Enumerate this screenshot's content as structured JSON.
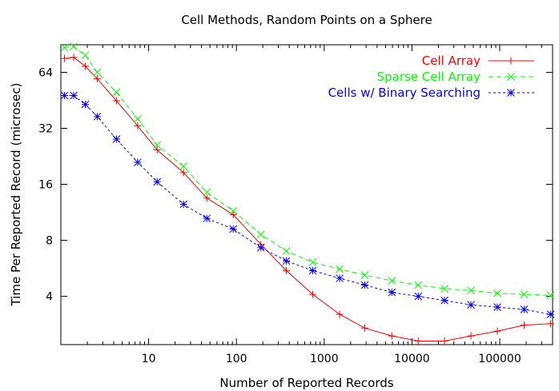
{
  "chart_data": {
    "type": "line",
    "title": "Cell Methods, Random Points on a Sphere",
    "xlabel": "Number of Reported Records",
    "ylabel": "Time Per Reported Record (microsec)",
    "xscale": "log",
    "yscale": "log",
    "xlim": [
      1,
      400000
    ],
    "ylim": [
      2.2,
      90
    ],
    "grid": false,
    "legend": "top-right",
    "xticks": [
      {
        "value": 10,
        "label": "10"
      },
      {
        "value": 100,
        "label": "100"
      },
      {
        "value": 1000,
        "label": "1000"
      },
      {
        "value": 10000,
        "label": "10000"
      },
      {
        "value": 100000,
        "label": "100000"
      }
    ],
    "yticks": [
      {
        "value": 4,
        "label": "4"
      },
      {
        "value": 8,
        "label": "8"
      },
      {
        "value": 16,
        "label": "16"
      },
      {
        "value": 32,
        "label": "32"
      },
      {
        "value": 64,
        "label": "64"
      }
    ],
    "series": [
      {
        "name": "Cell Array",
        "color": "#ff0000",
        "marker": "plus",
        "dash": "",
        "points": [
          [
            1.1,
            76
          ],
          [
            1.4,
            77
          ],
          [
            1.9,
            69
          ],
          [
            2.6,
            59
          ],
          [
            4.3,
            45
          ],
          [
            7.5,
            33
          ],
          [
            12.5,
            24.5
          ],
          [
            25,
            18.5
          ],
          [
            46,
            13.5
          ],
          [
            92,
            11
          ],
          [
            190,
            7.6
          ],
          [
            370,
            5.5
          ],
          [
            740,
            4.1
          ],
          [
            1500,
            3.2
          ],
          [
            2900,
            2.7
          ],
          [
            5900,
            2.45
          ],
          [
            11800,
            2.3
          ],
          [
            23500,
            2.3
          ],
          [
            47000,
            2.45
          ],
          [
            94000,
            2.6
          ],
          [
            190000,
            2.8
          ],
          [
            380000,
            2.85
          ]
        ]
      },
      {
        "name": "Sparse Cell Array",
        "color": "#00ff00",
        "marker": "cross",
        "dash": "6,4",
        "points": [
          [
            1.1,
            87
          ],
          [
            1.4,
            88
          ],
          [
            1.9,
            79
          ],
          [
            2.6,
            64
          ],
          [
            4.3,
            50
          ],
          [
            7.5,
            36
          ],
          [
            12.5,
            26
          ],
          [
            25,
            20
          ],
          [
            46,
            14.5
          ],
          [
            92,
            11.5
          ],
          [
            190,
            8.6
          ],
          [
            370,
            7
          ],
          [
            740,
            6.1
          ],
          [
            1500,
            5.6
          ],
          [
            2900,
            5.2
          ],
          [
            5900,
            4.85
          ],
          [
            11800,
            4.6
          ],
          [
            23500,
            4.4
          ],
          [
            47000,
            4.3
          ],
          [
            94000,
            4.15
          ],
          [
            190000,
            4.1
          ],
          [
            380000,
            4.05
          ]
        ]
      },
      {
        "name": "Cells w/ Binary Searching",
        "color": "#0000ff",
        "marker": "star",
        "dash": "3,3",
        "points": [
          [
            1.1,
            48
          ],
          [
            1.4,
            48
          ],
          [
            1.9,
            43
          ],
          [
            2.6,
            37
          ],
          [
            4.3,
            28
          ],
          [
            7.5,
            21
          ],
          [
            12.5,
            16.5
          ],
          [
            25,
            12.5
          ],
          [
            46,
            10.5
          ],
          [
            92,
            9.2
          ],
          [
            190,
            7.3
          ],
          [
            370,
            6.2
          ],
          [
            740,
            5.5
          ],
          [
            1500,
            5
          ],
          [
            2900,
            4.6
          ],
          [
            5900,
            4.2
          ],
          [
            11800,
            4
          ],
          [
            23500,
            3.8
          ],
          [
            47000,
            3.6
          ],
          [
            94000,
            3.5
          ],
          [
            190000,
            3.4
          ],
          [
            380000,
            3.2
          ]
        ]
      }
    ]
  }
}
